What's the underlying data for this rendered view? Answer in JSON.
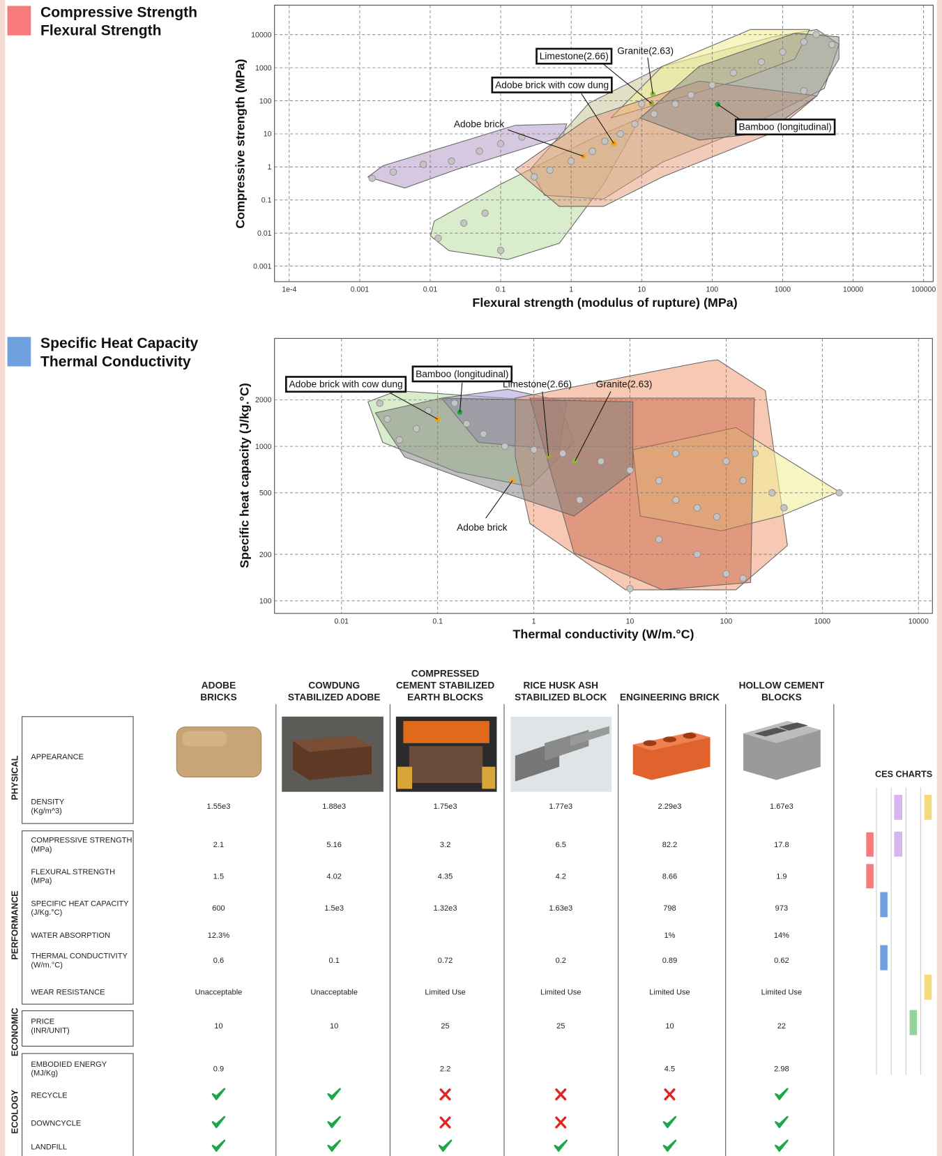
{
  "chart_data": [
    {
      "type": "scatter",
      "title": "Compressive Strength",
      "subtitle": "Flexural Strength",
      "marker_color": "#f77b7b",
      "x_label": "Flexural strength (modulus of rupture) (MPa)",
      "y_label": "Compressive strength (MPa)",
      "xscale": "log",
      "yscale": "log",
      "grid": true,
      "xlim": [
        6.18e-05,
        136700
      ],
      "ylim": [
        0.00034,
        78000
      ],
      "xticks": [
        {
          "value": 0.0001,
          "label": "1e-4"
        },
        0.001,
        0.01,
        0.1,
        1,
        10,
        100,
        1000,
        10000,
        100000
      ],
      "yticks": [
        0.001,
        0.01,
        0.1,
        1,
        10,
        100,
        1000,
        10000
      ],
      "series": [
        {
          "color": "#c4c4c4",
          "x": [
            0.0015,
            0.003,
            0.008,
            0.02,
            0.05,
            0.1,
            0.2,
            0.013,
            0.03,
            0.06,
            0.1,
            0.3,
            0.5,
            1,
            2,
            3,
            5,
            8,
            15,
            30,
            50,
            100,
            200,
            500,
            1000,
            2000,
            3000,
            5000,
            2000,
            10
          ],
          "values": [
            0.45,
            0.7,
            1.2,
            1.5,
            3,
            5,
            8,
            0.007,
            0.02,
            0.04,
            0.003,
            0.5,
            0.8,
            1.5,
            3,
            6,
            10,
            20,
            40,
            80,
            150,
            300,
            700,
            1500,
            3000,
            6000,
            10000,
            5000,
            200,
            80
          ]
        },
        {
          "name": "Adobe brick",
          "color": "#f5a21b",
          "x": [
            1.5
          ],
          "values": [
            2.1
          ]
        },
        {
          "name": "Adobe brick with cow dung",
          "color": "#f59e0b",
          "x": [
            4.02
          ],
          "values": [
            5.16
          ]
        },
        {
          "name": "Limestone(2.66)",
          "color": "#9aa83a",
          "x": [
            13.8
          ],
          "values": [
            83
          ]
        },
        {
          "name": "Granite(2.63)",
          "color": "#8fbf3a",
          "x": [
            14.4
          ],
          "values": [
            160
          ]
        },
        {
          "name": "Bamboo (longitudinal)",
          "color": "#22a045",
          "x": [
            120
          ],
          "values": [
            78
          ]
        }
      ]
    },
    {
      "type": "scatter",
      "title": "Specific Heat Capacity",
      "subtitle": "Thermal Conductivity",
      "marker_color": "#6fa0e0",
      "x_label": "Thermal conductivity (W/m.°C)",
      "y_label": "Specific heat capacity (J/kg.°C)",
      "xscale": "log",
      "yscale": "log",
      "grid": true,
      "xlim": [
        0.00201,
        13970
      ],
      "ylim": [
        83,
        4990
      ],
      "xticks": [
        0.01,
        0.1,
        1,
        10,
        100,
        1000,
        10000
      ],
      "yticks": [
        100,
        200,
        500,
        1000,
        2000
      ],
      "series": [
        {
          "color": "#c4c4c4",
          "x": [
            0.025,
            0.03,
            0.04,
            0.06,
            0.08,
            0.15,
            0.2,
            0.3,
            0.5,
            1,
            2,
            5,
            10,
            20,
            30,
            50,
            80,
            100,
            150,
            200,
            300,
            400,
            20,
            50,
            100,
            150,
            10,
            1500,
            30,
            3
          ],
          "values": [
            1900,
            1500,
            1100,
            1300,
            1700,
            1900,
            1400,
            1200,
            1000,
            950,
            900,
            800,
            700,
            600,
            450,
            400,
            350,
            800,
            600,
            900,
            500,
            400,
            250,
            200,
            150,
            140,
            120,
            500,
            900,
            450
          ]
        },
        {
          "name": "Adobe brick",
          "color": "#f5a21b",
          "x": [
            0.6
          ],
          "values": [
            600
          ]
        },
        {
          "name": "Adobe brick with cow dung",
          "color": "#f59e0b",
          "x": [
            0.1
          ],
          "values": [
            1500
          ]
        },
        {
          "name": "Bamboo (longitudinal)",
          "color": "#22a045",
          "x": [
            0.17
          ],
          "values": [
            1660
          ]
        },
        {
          "name": "Limestone(2.66)",
          "color": "#9aa83a",
          "x": [
            1.42
          ],
          "values": [
            866
          ]
        },
        {
          "name": "Granite(2.63)",
          "color": "#8fbf3a",
          "x": [
            2.68
          ],
          "values": [
            802
          ]
        }
      ]
    }
  ],
  "table": {
    "columns": [
      [
        "ADOBE",
        "BRICKS"
      ],
      [
        "COWDUNG",
        "STABILIZED ADOBE"
      ],
      [
        "COMPRESSED",
        "CEMENT STABILIZED",
        "EARTH BLOCKS"
      ],
      [
        "RICE HUSK ASH",
        "STABILIZED BLOCK"
      ],
      [
        "ENGINEERING BRICK"
      ],
      [
        "HOLLOW CEMENT",
        "BLOCKS"
      ]
    ],
    "groups": [
      {
        "name": "PHYSICAL",
        "rows": [
          {
            "label": [
              "APPEARANCE"
            ]
          },
          {
            "label": [
              "DENSITY",
              "(Kg/m^3)"
            ],
            "values": [
              "1.55e3",
              "1.88e3",
              "1.75e3",
              "1.77e3",
              "2.29e3",
              "1.67e3"
            ]
          }
        ]
      },
      {
        "name": "PERFORMANCE",
        "rows": [
          {
            "label": [
              "COMPRESSIVE STRENGTH",
              "(MPa)"
            ],
            "values": [
              "2.1",
              "5.16",
              "3.2",
              "6.5",
              "82.2",
              "17.8"
            ]
          },
          {
            "label": [
              "FLEXURAL STRENGTH",
              "(MPa)"
            ],
            "values": [
              "1.5",
              "4.02",
              "4.35",
              "4.2",
              "8.66",
              "1.9"
            ]
          },
          {
            "label": [
              "SPECIFIC HEAT CAPACITY",
              "(J/Kg.°C)"
            ],
            "values": [
              "600",
              "1.5e3",
              "1.32e3",
              "1.63e3",
              "798",
              "973"
            ]
          },
          {
            "label": [
              "WATER ABSORPTION"
            ],
            "values": [
              "12.3%",
              null,
              null,
              null,
              "1%",
              "14%"
            ]
          },
          {
            "label": [
              "THERMAL CONDUCTIVITY",
              "(W/m.°C)"
            ],
            "values": [
              "0.6",
              "0.1",
              "0.72",
              "0.2",
              "0.89",
              "0.62"
            ]
          },
          {
            "label": [
              "WEAR RESISTANCE"
            ],
            "values": [
              "Unacceptable",
              "Unacceptable",
              "Limited Use",
              "Limited Use",
              "Limited Use",
              "Limited Use"
            ]
          }
        ]
      },
      {
        "name": "ECONOMIC",
        "rows": [
          {
            "label": [
              "PRICE",
              "(INR/UNIT)"
            ],
            "values": [
              "10",
              "10",
              "25",
              "25",
              "10",
              "22"
            ]
          }
        ]
      },
      {
        "name": "ECOLOGY",
        "rows": [
          {
            "label": [
              "EMBODIED ENERGY",
              "(MJ/Kg)"
            ],
            "values": [
              "0.9",
              null,
              "2.2",
              null,
              "4.5",
              "2.98"
            ]
          },
          {
            "label": [
              "RECYCLE"
            ],
            "values": [
              true,
              true,
              false,
              false,
              false,
              true
            ]
          },
          {
            "label": [
              "DOWNCYCLE"
            ],
            "values": [
              true,
              true,
              false,
              false,
              true,
              true
            ]
          },
          {
            "label": [
              "LANDFILL"
            ],
            "values": [
              true,
              true,
              true,
              true,
              true,
              true
            ]
          }
        ]
      }
    ]
  },
  "sidebar_title": "CES CHARTS"
}
